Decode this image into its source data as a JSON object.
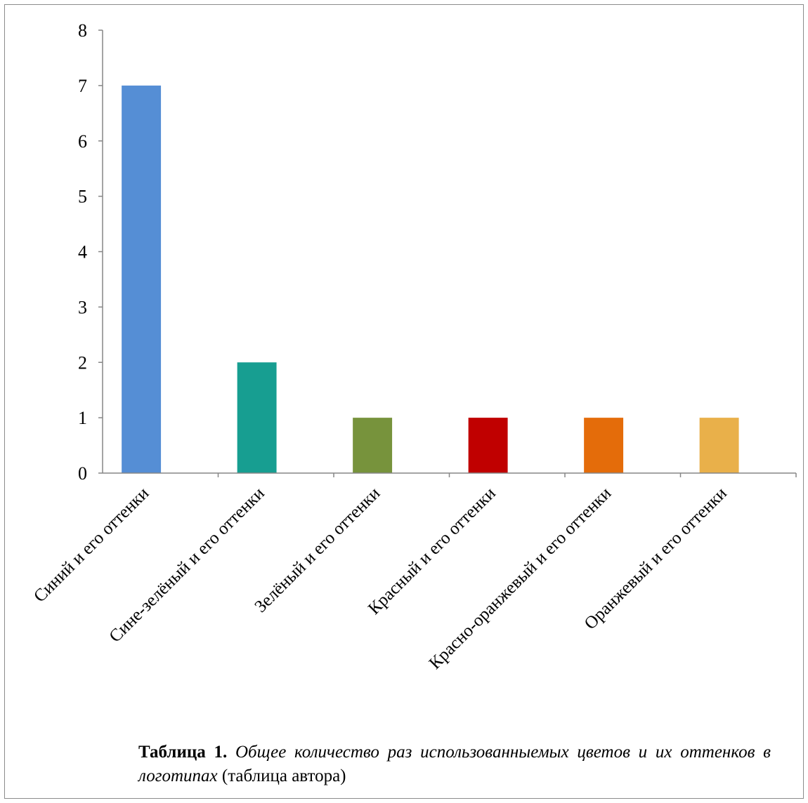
{
  "chart_data": {
    "type": "bar",
    "categories": [
      "Синий и его оттенки",
      "Сине-зелёный и его оттенки",
      "Зелёный и его оттенки",
      "Красный и его оттенки",
      "Красно-оранжевый и его оттенки",
      "Оранжевый и его оттенки"
    ],
    "values": [
      7,
      2,
      1,
      1,
      1,
      1
    ],
    "colors": [
      "#558ed5",
      "#179e91",
      "#77933c",
      "#c00000",
      "#e46c0a",
      "#e9b04a"
    ],
    "ylim": [
      0,
      8
    ],
    "yticks": [
      "0",
      "1",
      "2",
      "3",
      "4",
      "5",
      "6",
      "7",
      "8"
    ],
    "grid": false,
    "legend": "none"
  },
  "caption": {
    "label": "Таблица 1.",
    "text": "Общее количество раз использованныемых цветов и их оттенков в логотипах",
    "source": "(таблица автора)"
  }
}
